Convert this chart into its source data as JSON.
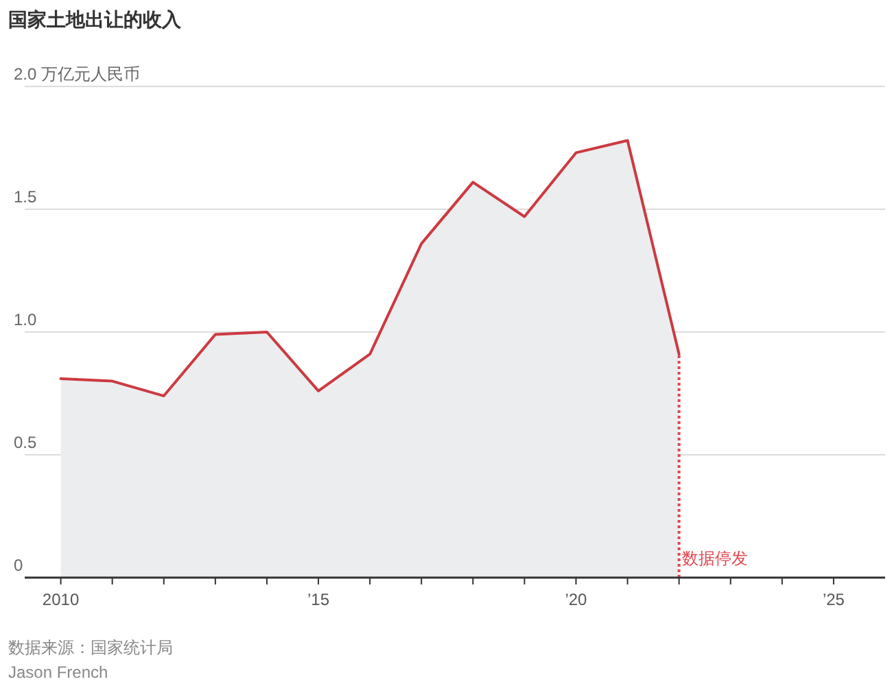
{
  "chart_data": {
    "type": "area",
    "title": "国家土地出让的收入",
    "x": [
      2010,
      2011,
      2012,
      2013,
      2014,
      2015,
      2016,
      2017,
      2018,
      2019,
      2020,
      2021,
      2022
    ],
    "series": [
      {
        "color": "#cc3a41",
        "values": [
          0.81,
          0.8,
          0.74,
          0.99,
          1.0,
          0.76,
          0.91,
          1.36,
          1.61,
          1.47,
          1.73,
          1.78,
          0.91
        ]
      }
    ],
    "xlim": [
      2009.3,
      2026
    ],
    "xticks": [
      2010,
      {
        "value": 2011,
        "label": null
      },
      {
        "value": 2012,
        "label": null
      },
      {
        "value": 2013,
        "label": null
      },
      {
        "value": 2014,
        "label": null
      },
      {
        "value": 2015,
        "label": "’15"
      },
      {
        "value": 2016,
        "label": null
      },
      {
        "value": 2017,
        "label": null
      },
      {
        "value": 2018,
        "label": null
      },
      {
        "value": 2019,
        "label": null
      },
      {
        "value": 2020,
        "label": "’20"
      },
      {
        "value": 2021,
        "label": null
      },
      {
        "value": 2022,
        "label": null
      },
      {
        "value": 2023,
        "label": null
      },
      {
        "value": 2024,
        "label": null
      },
      {
        "value": 2025,
        "label": "’25"
      }
    ],
    "ylim": [
      0,
      2
    ],
    "yticks": [
      0,
      0.5,
      {
        "value": 1,
        "label": "1.0"
      },
      1.5,
      {
        "value": 2,
        "label": "2.0 万亿元人民币"
      }
    ],
    "grid": "y",
    "ref_lines": [
      {
        "axis": "x",
        "value": 2022,
        "label": "数据停发",
        "color": "#e0464d",
        "line_style": "dotted"
      }
    ],
    "annotations": [
      "数据来源：国家统计局",
      "Jason French"
    ]
  }
}
